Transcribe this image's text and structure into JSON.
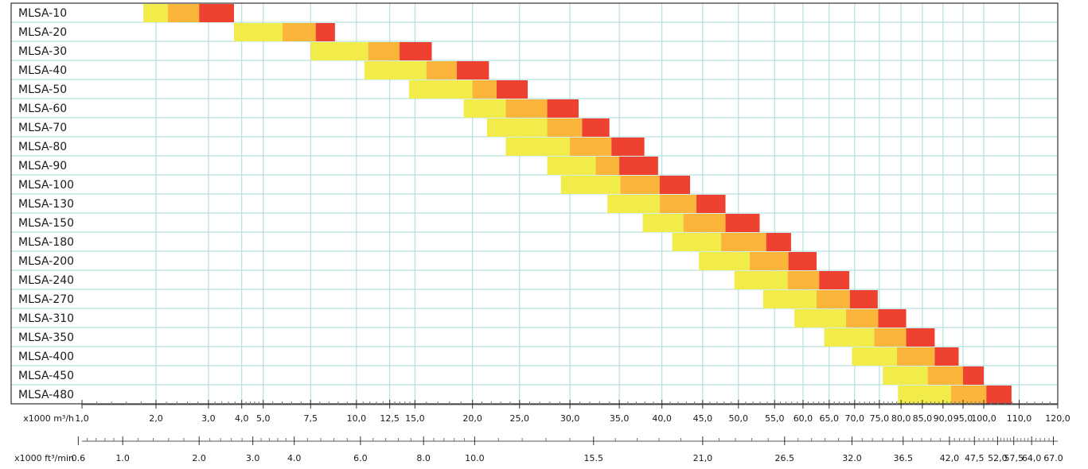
{
  "chart_data": {
    "type": "bar",
    "subtype": "floating-range-bars",
    "x_scale": "log",
    "grid": true,
    "colors": {
      "low": "#f2ec4a",
      "mid": "#fbb53a",
      "high": "#ee4130",
      "grid": "#a6dcda",
      "frame": "#333333"
    },
    "categories": [
      "MLSA-10",
      "MLSA-20",
      "MLSA-30",
      "MLSA-40",
      "MLSA-50",
      "MLSA-60",
      "MLSA-70",
      "MLSA-80",
      "MLSA-90",
      "MLSA-100",
      "MLSA-130",
      "MLSA-150",
      "MLSA-180",
      "MLSA-200",
      "MLSA-240",
      "MLSA-270",
      "MLSA-310",
      "MLSA-350",
      "MLSA-400",
      "MLSA-450",
      "MLSA-480"
    ],
    "ranges": [
      {
        "name": "MLSA-10",
        "segments": [
          1.4,
          1.6,
          1.9,
          2.3
        ]
      },
      {
        "name": "MLSA-20",
        "segments": [
          2.3,
          3.0,
          3.6,
          4.0
        ]
      },
      {
        "name": "MLSA-30",
        "segments": [
          3.5,
          4.8,
          5.7,
          6.8
        ]
      },
      {
        "name": "MLSA-40",
        "segments": [
          4.7,
          6.6,
          7.8,
          9.3
        ]
      },
      {
        "name": "MLSA-50",
        "segments": [
          6.0,
          8.5,
          9.7,
          11.5
        ]
      },
      {
        "name": "MLSA-60",
        "segments": [
          8.1,
          10.2,
          12.8,
          15.2
        ]
      },
      {
        "name": "MLSA-70",
        "segments": [
          9.2,
          12.8,
          15.5,
          18.0
        ]
      },
      {
        "name": "MLSA-80",
        "segments": [
          10.2,
          14.5,
          18.2,
          21.8
        ]
      },
      {
        "name": "MLSA-90",
        "segments": [
          12.8,
          16.7,
          19.0,
          23.5
        ]
      },
      {
        "name": "MLSA-100",
        "segments": [
          13.8,
          19.1,
          23.7,
          28.0
        ]
      },
      {
        "name": "MLSA-130",
        "segments": [
          17.8,
          23.7,
          29.0,
          34.0
        ]
      },
      {
        "name": "MLSA-150",
        "segments": [
          21.6,
          27.0,
          34.0,
          41.0
        ]
      },
      {
        "name": "MLSA-180",
        "segments": [
          25.4,
          33.2,
          42.5,
          48.7
        ]
      },
      {
        "name": "MLSA-200",
        "segments": [
          29.4,
          38.8,
          48.0,
          56.0
        ]
      },
      {
        "name": "MLSA-240",
        "segments": [
          35.7,
          47.8,
          56.8,
          67.0
        ]
      },
      {
        "name": "MLSA-270",
        "segments": [
          41.8,
          56.0,
          67.2,
          78.3
        ]
      },
      {
        "name": "MLSA-310",
        "segments": [
          49.6,
          65.8,
          78.5,
          91.5
        ]
      },
      {
        "name": "MLSA-350",
        "segments": [
          58.4,
          76.8,
          91.5,
          107.0
        ]
      },
      {
        "name": "MLSA-400",
        "segments": [
          68.0,
          87.0,
          107.0,
          122.0
        ]
      },
      {
        "name": "MLSA-450",
        "segments": [
          80.5,
          103.0,
          125.0,
          140.0
        ]
      },
      {
        "name": "MLSA-480",
        "segments": [
          87.5,
          117.0,
          142.0,
          163.0
        ]
      }
    ],
    "x_axis_primary": {
      "label": "x1000 m³/h",
      "ticks": [
        {
          "v": 1.0,
          "t": "1,0"
        },
        {
          "v": 1.5,
          "t": "2,0"
        },
        {
          "v": 2.0,
          "t": "3,0"
        },
        {
          "v": 2.4,
          "t": "4,0"
        },
        {
          "v": 2.7,
          "t": "5,0"
        },
        {
          "v": 3.5,
          "t": "7,5"
        },
        {
          "v": 4.5,
          "t": "10,0"
        },
        {
          "v": 5.4,
          "t": "12,5"
        },
        {
          "v": 6.2,
          "t": "15,0"
        },
        {
          "v": 8.5,
          "t": "20,0"
        },
        {
          "v": 11.0,
          "t": "25,0"
        },
        {
          "v": 14.5,
          "t": "30,0"
        },
        {
          "v": 19.0,
          "t": "35,0"
        },
        {
          "v": 24.0,
          "t": "40,0"
        },
        {
          "v": 30.0,
          "t": "45,0"
        },
        {
          "v": 36.5,
          "t": "50,0"
        },
        {
          "v": 44.5,
          "t": "55,0"
        },
        {
          "v": 52.0,
          "t": "60,0"
        },
        {
          "v": 60.0,
          "t": "65,0"
        },
        {
          "v": 69.0,
          "t": "70,0"
        },
        {
          "v": 79.0,
          "t": "75,0"
        },
        {
          "v": 89.0,
          "t": "80,0"
        },
        {
          "v": 100.0,
          "t": "85,0"
        },
        {
          "v": 112.0,
          "t": "90,0"
        },
        {
          "v": 125.0,
          "t": "95,0"
        },
        {
          "v": 140.0,
          "t": "100,0"
        },
        {
          "v": 170.0,
          "t": "110,0"
        },
        {
          "v": 210.0,
          "t": "120,0"
        }
      ]
    },
    "x_axis_secondary": {
      "label": "x1000 ft³/min",
      "ticks": [
        {
          "v": 0.98,
          "t": "0.6"
        },
        {
          "v": 1.25,
          "t": "1.0"
        },
        {
          "v": 1.9,
          "t": "2.0"
        },
        {
          "v": 2.55,
          "t": "3.0"
        },
        {
          "v": 3.2,
          "t": "4.0"
        },
        {
          "v": 4.6,
          "t": "6.0"
        },
        {
          "v": 6.5,
          "t": "8.0"
        },
        {
          "v": 8.6,
          "t": "10.0"
        },
        {
          "v": 16.5,
          "t": "15.5"
        },
        {
          "v": 30.0,
          "t": "21,0"
        },
        {
          "v": 47.0,
          "t": "26.5"
        },
        {
          "v": 68.0,
          "t": "32.0"
        },
        {
          "v": 90.0,
          "t": "36.5"
        },
        {
          "v": 116.0,
          "t": "42,0"
        },
        {
          "v": 133.0,
          "t": "47,5"
        },
        {
          "v": 151.0,
          "t": "52,0"
        },
        {
          "v": 165.0,
          "t": "57,5"
        },
        {
          "v": 182.0,
          "t": "64,0"
        },
        {
          "v": 205.0,
          "t": "67.0"
        }
      ]
    }
  }
}
